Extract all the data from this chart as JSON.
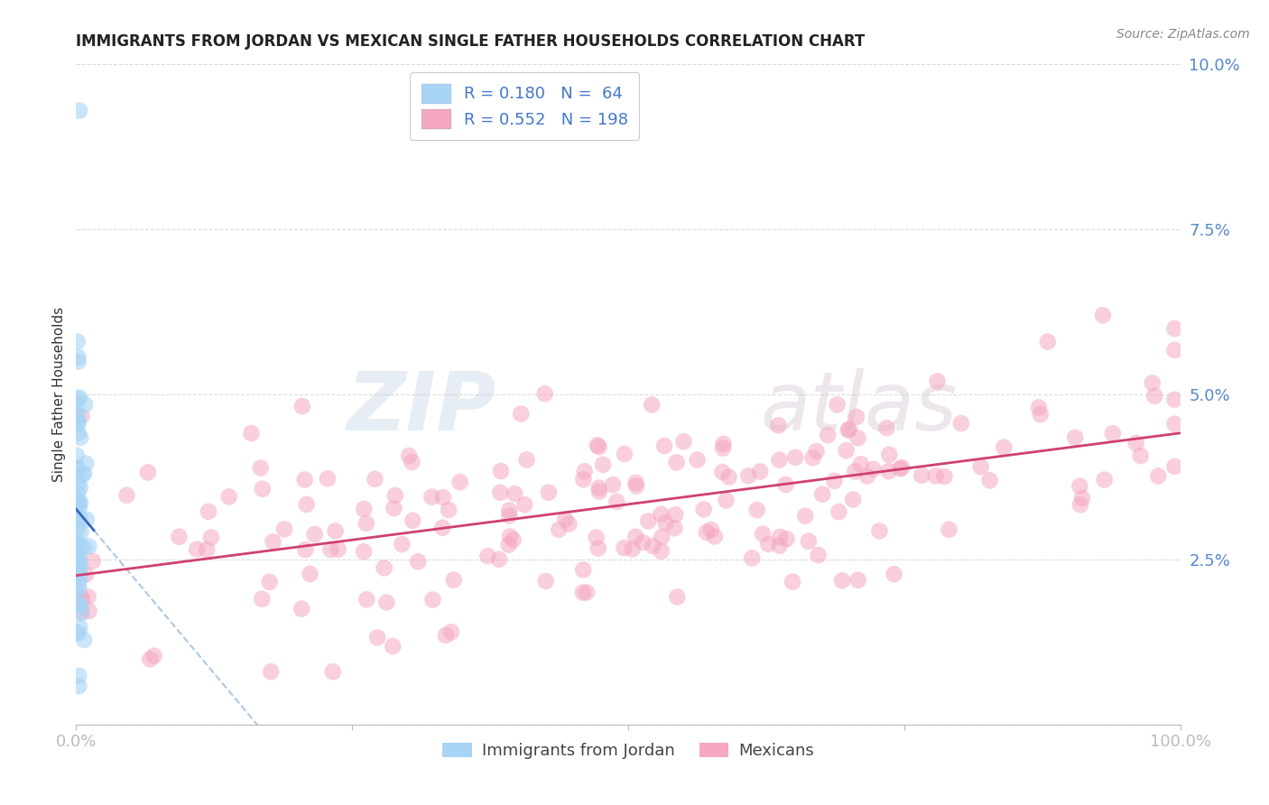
{
  "title": "IMMIGRANTS FROM JORDAN VS MEXICAN SINGLE FATHER HOUSEHOLDS CORRELATION CHART",
  "source": "Source: ZipAtlas.com",
  "ylabel": "Single Father Households",
  "r_jordan": 0.18,
  "n_jordan": 64,
  "r_mexicans": 0.552,
  "n_mexicans": 198,
  "legend_label_jordan": "Immigrants from Jordan",
  "legend_label_mexicans": "Mexicans",
  "xlim": [
    0,
    1.0
  ],
  "ylim": [
    0,
    0.1
  ],
  "color_jordan": "#A8D4F5",
  "color_mexicans": "#F5A8C0",
  "line_color_jordan": "#3366BB",
  "line_color_mexicans": "#D04070",
  "line_color_dash": "#99BBDD",
  "background_color": "#FFFFFF",
  "watermark_zip": "ZIP",
  "watermark_atlas": "atlas",
  "title_color": "#222222",
  "source_color": "#888888",
  "tick_color": "#5588CC",
  "ylabel_color": "#333333",
  "legend_text_color": "#4477CC",
  "legend_r_color": "#2266CC",
  "legend_n_color": "#2266CC"
}
